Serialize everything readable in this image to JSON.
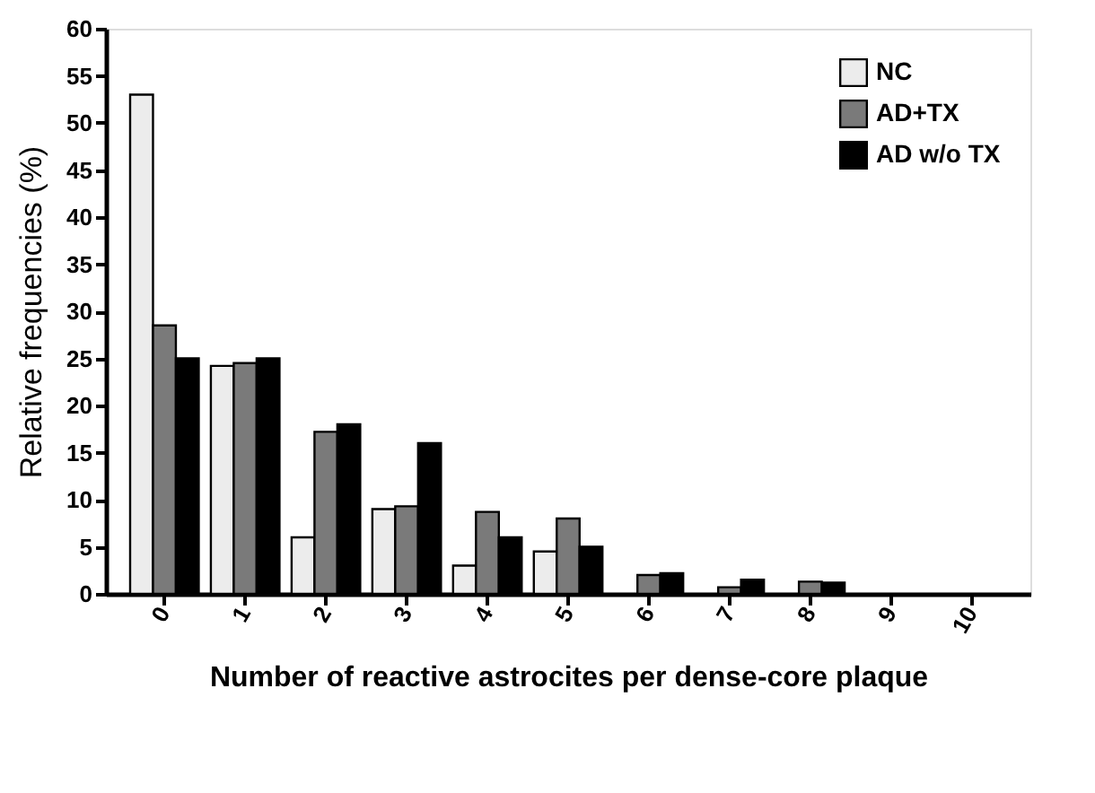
{
  "chart_data": {
    "type": "bar",
    "xlabel": "Number of reactive astrocites per dense-core plaque",
    "ylabel": "Relative frequencies (%)",
    "categories": [
      "0",
      "1",
      "2",
      "3",
      "4",
      "5",
      "6",
      "7",
      "8",
      "9",
      "10"
    ],
    "series": [
      {
        "name": "NC",
        "color": "#ececec",
        "values": [
          53,
          24.2,
          6,
          9,
          3,
          4.5,
          null,
          null,
          null,
          null,
          null
        ]
      },
      {
        "name": "AD+TX",
        "color": "#7a7a7a",
        "values": [
          28.5,
          24.5,
          17.2,
          9.3,
          8.7,
          8,
          2,
          0.7,
          1.3,
          null,
          null
        ]
      },
      {
        "name": "AD w/o TX",
        "color": "#000000",
        "values": [
          25,
          25,
          18,
          16,
          6,
          5,
          2.2,
          1.5,
          1.2,
          null,
          null
        ]
      }
    ],
    "ylim": [
      0,
      60
    ],
    "yticks": [
      0,
      5,
      10,
      15,
      20,
      25,
      30,
      35,
      40,
      45,
      50,
      55,
      60
    ],
    "grid": false,
    "legend": "top right"
  }
}
